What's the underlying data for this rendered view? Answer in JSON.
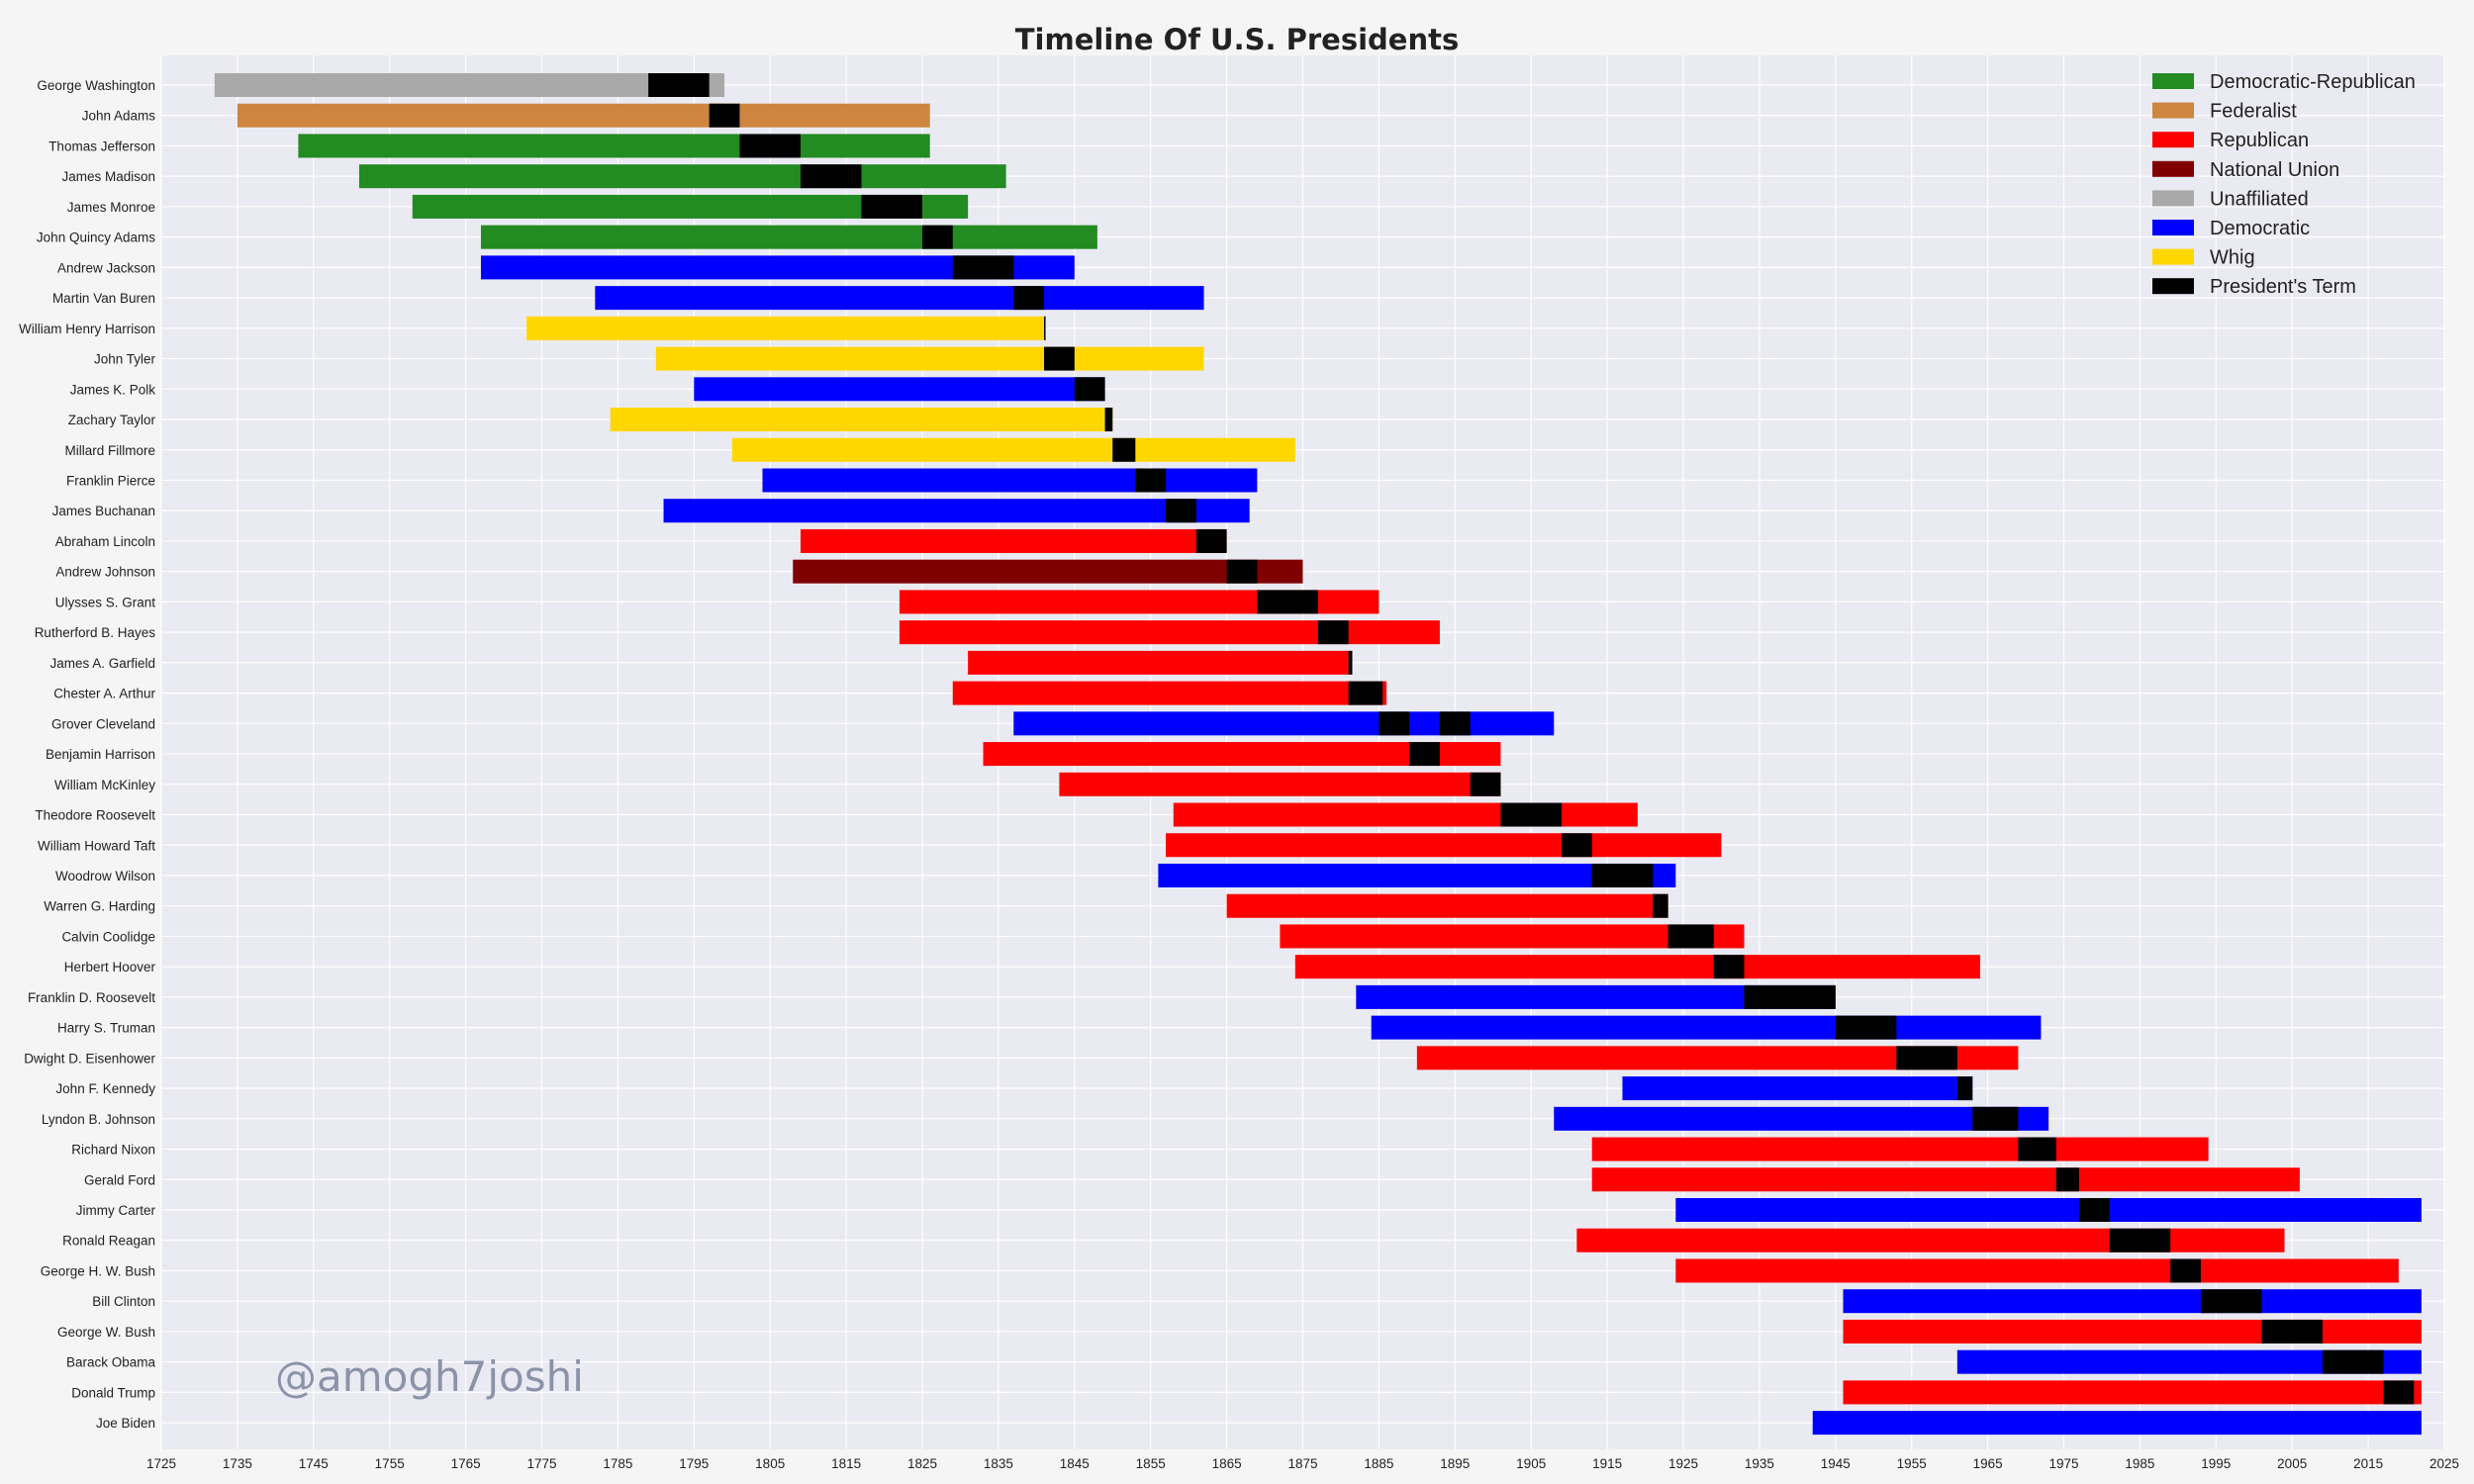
{
  "chart_data": {
    "type": "bar",
    "orientation": "horizontal-timeline",
    "title": "Timeline Of U.S.  Presidents",
    "xlim": [
      1725,
      2025
    ],
    "x_ticks": [
      1725,
      1735,
      1745,
      1755,
      1765,
      1775,
      1785,
      1795,
      1805,
      1815,
      1825,
      1835,
      1845,
      1855,
      1865,
      1875,
      1885,
      1895,
      1905,
      1915,
      1925,
      1935,
      1945,
      1955,
      1965,
      1975,
      1985,
      1995,
      2005,
      2015,
      2025
    ],
    "grid": true,
    "legend_position": "top-right",
    "legend": [
      {
        "label": "Democratic-Republican",
        "color": "#228b22"
      },
      {
        "label": "Federalist",
        "color": "#cd853f"
      },
      {
        "label": "Republican",
        "color": "#ff0000"
      },
      {
        "label": "National Union",
        "color": "#800000"
      },
      {
        "label": "Unaffiliated",
        "color": "#a9a9a9"
      },
      {
        "label": "Democratic",
        "color": "#0000ff"
      },
      {
        "label": "Whig",
        "color": "#ffd700"
      },
      {
        "label": "President's Term",
        "color": "#000000"
      }
    ],
    "party_colors": {
      "Democratic-Republican": "#228b22",
      "Federalist": "#cd853f",
      "Republican": "#ff0000",
      "National Union": "#800000",
      "Unaffiliated": "#a9a9a9",
      "Democratic": "#0000ff",
      "Whig": "#ffd700",
      "President's Term": "#000000"
    },
    "presidents": [
      {
        "name": "George Washington",
        "party": "Unaffiliated",
        "born": 1732,
        "died": 1799,
        "terms": [
          [
            1789,
            1797
          ]
        ]
      },
      {
        "name": "John Adams",
        "party": "Federalist",
        "born": 1735,
        "died": 1826,
        "terms": [
          [
            1797,
            1801
          ]
        ]
      },
      {
        "name": "Thomas Jefferson",
        "party": "Democratic-Republican",
        "born": 1743,
        "died": 1826,
        "terms": [
          [
            1801,
            1809
          ]
        ]
      },
      {
        "name": "James Madison",
        "party": "Democratic-Republican",
        "born": 1751,
        "died": 1836,
        "terms": [
          [
            1809,
            1817
          ]
        ]
      },
      {
        "name": "James Monroe",
        "party": "Democratic-Republican",
        "born": 1758,
        "died": 1831,
        "terms": [
          [
            1817,
            1825
          ]
        ]
      },
      {
        "name": "John Quincy Adams",
        "party": "Democratic-Republican",
        "born": 1767,
        "died": 1848,
        "terms": [
          [
            1825,
            1829
          ]
        ]
      },
      {
        "name": "Andrew Jackson",
        "party": "Democratic",
        "born": 1767,
        "died": 1845,
        "terms": [
          [
            1829,
            1837
          ]
        ]
      },
      {
        "name": "Martin Van Buren",
        "party": "Democratic",
        "born": 1782,
        "died": 1862,
        "terms": [
          [
            1837,
            1841
          ]
        ]
      },
      {
        "name": "William Henry Harrison",
        "party": "Whig",
        "born": 1773,
        "died": 1841,
        "terms": [
          [
            1841,
            1841.1
          ]
        ]
      },
      {
        "name": "John Tyler",
        "party": "Whig",
        "born": 1790,
        "died": 1862,
        "terms": [
          [
            1841,
            1845
          ]
        ]
      },
      {
        "name": "James K. Polk",
        "party": "Democratic",
        "born": 1795,
        "died": 1849,
        "terms": [
          [
            1845,
            1849
          ]
        ]
      },
      {
        "name": "Zachary Taylor",
        "party": "Whig",
        "born": 1784,
        "died": 1850,
        "terms": [
          [
            1849,
            1850
          ]
        ]
      },
      {
        "name": "Millard Fillmore",
        "party": "Whig",
        "born": 1800,
        "died": 1874,
        "terms": [
          [
            1850,
            1853
          ]
        ]
      },
      {
        "name": "Franklin Pierce",
        "party": "Democratic",
        "born": 1804,
        "died": 1869,
        "terms": [
          [
            1853,
            1857
          ]
        ]
      },
      {
        "name": "James Buchanan",
        "party": "Democratic",
        "born": 1791,
        "died": 1868,
        "terms": [
          [
            1857,
            1861
          ]
        ]
      },
      {
        "name": "Abraham Lincoln",
        "party": "Republican",
        "born": 1809,
        "died": 1865,
        "terms": [
          [
            1861,
            1865
          ]
        ]
      },
      {
        "name": "Andrew Johnson",
        "party": "National Union",
        "born": 1808,
        "died": 1875,
        "terms": [
          [
            1865,
            1869
          ]
        ]
      },
      {
        "name": "Ulysses S. Grant",
        "party": "Republican",
        "born": 1822,
        "died": 1885,
        "terms": [
          [
            1869,
            1877
          ]
        ]
      },
      {
        "name": "Rutherford B. Hayes",
        "party": "Republican",
        "born": 1822,
        "died": 1893,
        "terms": [
          [
            1877,
            1881
          ]
        ]
      },
      {
        "name": "James A. Garfield",
        "party": "Republican",
        "born": 1831,
        "died": 1881,
        "terms": [
          [
            1881,
            1881.5
          ]
        ]
      },
      {
        "name": "Chester A. Arthur",
        "party": "Republican",
        "born": 1829,
        "died": 1886,
        "terms": [
          [
            1881,
            1885.5
          ]
        ]
      },
      {
        "name": "Grover Cleveland",
        "party": "Democratic",
        "born": 1837,
        "died": 1908,
        "terms": [
          [
            1885,
            1889
          ],
          [
            1893,
            1897
          ]
        ]
      },
      {
        "name": "Benjamin Harrison",
        "party": "Republican",
        "born": 1833,
        "died": 1901,
        "terms": [
          [
            1889,
            1893
          ]
        ]
      },
      {
        "name": "William McKinley",
        "party": "Republican",
        "born": 1843,
        "died": 1901,
        "terms": [
          [
            1897,
            1901
          ]
        ]
      },
      {
        "name": "Theodore Roosevelt",
        "party": "Republican",
        "born": 1858,
        "died": 1919,
        "terms": [
          [
            1901,
            1909
          ]
        ]
      },
      {
        "name": "William Howard Taft",
        "party": "Republican",
        "born": 1857,
        "died": 1930,
        "terms": [
          [
            1909,
            1913
          ]
        ]
      },
      {
        "name": "Woodrow Wilson",
        "party": "Democratic",
        "born": 1856,
        "died": 1924,
        "terms": [
          [
            1913,
            1921
          ]
        ]
      },
      {
        "name": "Warren G. Harding",
        "party": "Republican",
        "born": 1865,
        "died": 1923,
        "terms": [
          [
            1921,
            1923
          ]
        ]
      },
      {
        "name": "Calvin Coolidge",
        "party": "Republican",
        "born": 1872,
        "died": 1933,
        "terms": [
          [
            1923,
            1929
          ]
        ]
      },
      {
        "name": "Herbert Hoover",
        "party": "Republican",
        "born": 1874,
        "died": 1964,
        "terms": [
          [
            1929,
            1933
          ]
        ]
      },
      {
        "name": "Franklin D. Roosevelt",
        "party": "Democratic",
        "born": 1882,
        "died": 1945,
        "terms": [
          [
            1933,
            1945
          ]
        ]
      },
      {
        "name": "Harry S. Truman",
        "party": "Democratic",
        "born": 1884,
        "died": 1972,
        "terms": [
          [
            1945,
            1953
          ]
        ]
      },
      {
        "name": "Dwight D. Eisenhower",
        "party": "Republican",
        "born": 1890,
        "died": 1969,
        "terms": [
          [
            1953,
            1961
          ]
        ]
      },
      {
        "name": "John F. Kennedy",
        "party": "Democratic",
        "born": 1917,
        "died": 1963,
        "terms": [
          [
            1961,
            1963
          ]
        ]
      },
      {
        "name": "Lyndon B. Johnson",
        "party": "Democratic",
        "born": 1908,
        "died": 1973,
        "terms": [
          [
            1963,
            1969
          ]
        ]
      },
      {
        "name": "Richard Nixon",
        "party": "Republican",
        "born": 1913,
        "died": 1994,
        "terms": [
          [
            1969,
            1974
          ]
        ]
      },
      {
        "name": "Gerald Ford",
        "party": "Republican",
        "born": 1913,
        "died": 2006,
        "terms": [
          [
            1974,
            1977
          ]
        ]
      },
      {
        "name": "Jimmy Carter",
        "party": "Democratic",
        "born": 1924,
        "died": 2022,
        "terms": [
          [
            1977,
            1981
          ]
        ]
      },
      {
        "name": "Ronald Reagan",
        "party": "Republican",
        "born": 1911,
        "died": 2004,
        "terms": [
          [
            1981,
            1989
          ]
        ]
      },
      {
        "name": "George H. W. Bush",
        "party": "Republican",
        "born": 1924,
        "died": 2019,
        "terms": [
          [
            1989,
            1993
          ]
        ]
      },
      {
        "name": "Bill Clinton",
        "party": "Democratic",
        "born": 1946,
        "died": 2022,
        "terms": [
          [
            1993,
            2001
          ]
        ]
      },
      {
        "name": "George W. Bush",
        "party": "Republican",
        "born": 1946,
        "died": 2022,
        "terms": [
          [
            2001,
            2009
          ]
        ]
      },
      {
        "name": "Barack Obama",
        "party": "Democratic",
        "born": 1961,
        "died": 2022,
        "terms": [
          [
            2009,
            2017
          ]
        ]
      },
      {
        "name": "Donald Trump",
        "party": "Republican",
        "born": 1946,
        "died": 2022,
        "terms": [
          [
            2017,
            2021
          ]
        ]
      },
      {
        "name": "Joe Biden",
        "party": "Democratic",
        "born": 1942,
        "died": 2022,
        "terms": []
      }
    ]
  },
  "watermark": "@amogh7joshi"
}
